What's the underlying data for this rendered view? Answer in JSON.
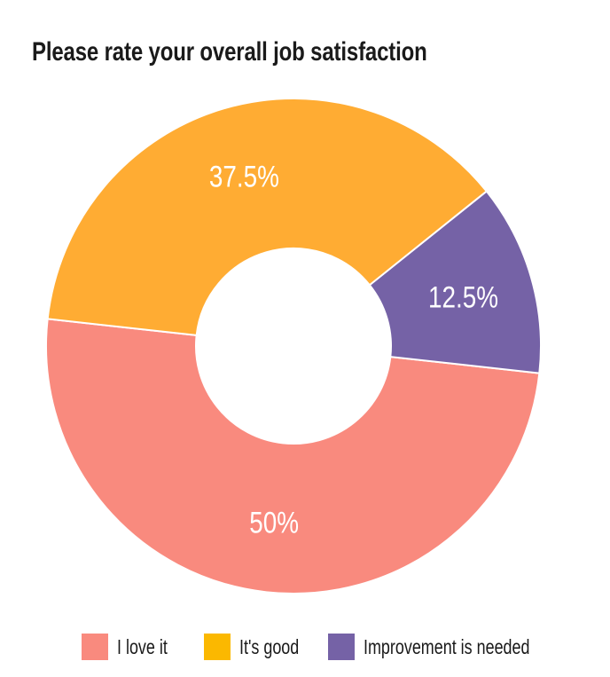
{
  "chart_data": {
    "type": "pie",
    "title": "Please rate your overall job satisfaction",
    "categories": [
      "I love it",
      "It's good",
      "Improvement is needed"
    ],
    "values": [
      50,
      37.5,
      12.5
    ],
    "value_labels": [
      "50%",
      "37.5%",
      "12.5%"
    ],
    "colors": [
      "#f98a7e",
      "#ffac33",
      "#7562a6"
    ],
    "legend_colors": [
      "#f98a7e",
      "#fbb800",
      "#7562a6"
    ],
    "donut": true,
    "legend_placement": "bottom"
  }
}
